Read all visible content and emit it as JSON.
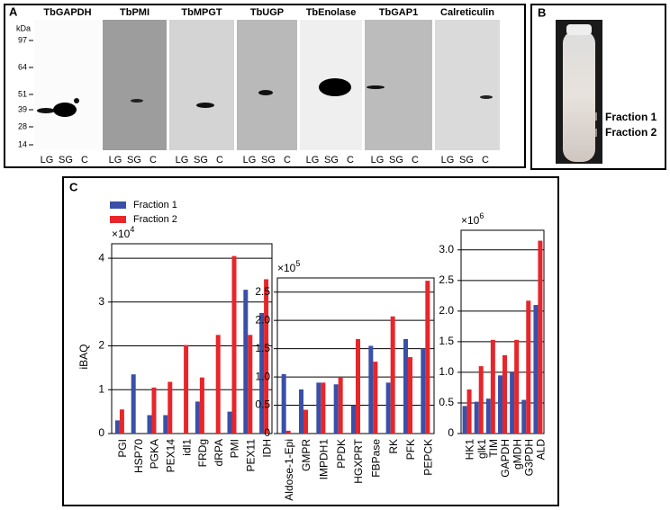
{
  "panel_a": {
    "label": "A",
    "unit": "kDa",
    "markers": [
      "97",
      "64",
      "51",
      "39",
      "28",
      "14"
    ],
    "blots": [
      {
        "title": "TbGAPDH",
        "lanes": [
          "LG",
          "SG",
          "C"
        ]
      },
      {
        "title": "TbPMI",
        "lanes": [
          "LG",
          "SG",
          "C"
        ]
      },
      {
        "title": "TbMPGT",
        "lanes": [
          "LG",
          "SG",
          "C"
        ]
      },
      {
        "title": "TbUGP",
        "lanes": [
          "LG",
          "SG",
          "C"
        ]
      },
      {
        "title": "TbEnolase",
        "lanes": [
          "LG",
          "SG",
          "C"
        ]
      },
      {
        "title": "TbGAP1",
        "lanes": [
          "LG",
          "SG",
          "C"
        ]
      },
      {
        "title": "Calreticulin",
        "lanes": [
          "LG",
          "SG",
          "C"
        ]
      }
    ]
  },
  "panel_b": {
    "label": "B",
    "fractions": [
      "Fraction 1",
      "Fraction 2"
    ]
  },
  "panel_c": {
    "label": "C"
  },
  "chart_data": [
    {
      "type": "bar",
      "ylabel": "iBAQ",
      "multiplier": {
        "base": "×10",
        "exponent": "4"
      },
      "categories": [
        "PGI",
        "HSP70",
        "PGKA",
        "PEX14",
        "idl1",
        "FRDg",
        "dRPA",
        "PMI",
        "PEX11",
        "IDH"
      ],
      "series": [
        {
          "name": "Fraction 1",
          "color": "#3a50a8",
          "values": [
            0.3,
            1.35,
            0.42,
            0.42,
            null,
            0.73,
            null,
            0.5,
            3.28,
            2.75
          ]
        },
        {
          "name": "Fraction 2",
          "color": "#e8252a",
          "values": [
            0.55,
            null,
            1.05,
            1.18,
            2.02,
            1.28,
            2.25,
            4.05,
            2.25,
            3.52
          ]
        }
      ],
      "ylim": [
        0,
        4.33
      ],
      "yticks": [
        0,
        1,
        2,
        3,
        4
      ],
      "grid": true
    },
    {
      "type": "bar",
      "multiplier": {
        "base": "×10",
        "exponent": "5"
      },
      "categories": [
        "Aldose-1-Epi",
        "GMPR",
        "IMPDH1",
        "PPDK",
        "HGXPRT",
        "FBPase",
        "RK",
        "PFK",
        "PEPCK"
      ],
      "series": [
        {
          "name": "Fraction 1",
          "color": "#3a50a8",
          "values": [
            1.05,
            0.78,
            0.9,
            0.87,
            0.5,
            1.55,
            0.9,
            1.67,
            1.5
          ]
        },
        {
          "name": "Fraction 2",
          "color": "#e8252a",
          "values": [
            0.05,
            0.42,
            0.9,
            1.0,
            1.67,
            1.27,
            2.07,
            1.35,
            2.7
          ]
        }
      ],
      "ylim": [
        0,
        2.75
      ],
      "yticks": [
        0,
        0.5,
        {
          "value": 1,
          "label": "1.0"
        },
        1.5,
        {
          "value": 2,
          "label": "2.0"
        },
        2.5
      ],
      "grid": true
    },
    {
      "type": "bar",
      "multiplier": {
        "base": "×10",
        "exponent": "6"
      },
      "categories": [
        "HK1",
        "glk1",
        "TIM",
        "GAPDH",
        "gMDH",
        "G3PDH",
        "ALD"
      ],
      "series": [
        {
          "name": "Fraction 1",
          "color": "#3a50a8",
          "values": [
            0.45,
            0.52,
            0.57,
            0.95,
            1.0,
            0.55,
            2.1
          ]
        },
        {
          "name": "Fraction 2",
          "color": "#e8252a",
          "values": [
            0.72,
            1.1,
            1.53,
            1.28,
            1.53,
            2.17,
            3.15
          ]
        }
      ],
      "ylim": [
        0,
        3.32
      ],
      "yticks": [
        0,
        0.5,
        {
          "value": 1,
          "label": "1.0"
        },
        1.5,
        {
          "value": 2,
          "label": "2.0"
        },
        2.5,
        {
          "value": 3,
          "label": "3.0"
        }
      ],
      "grid": true
    }
  ]
}
